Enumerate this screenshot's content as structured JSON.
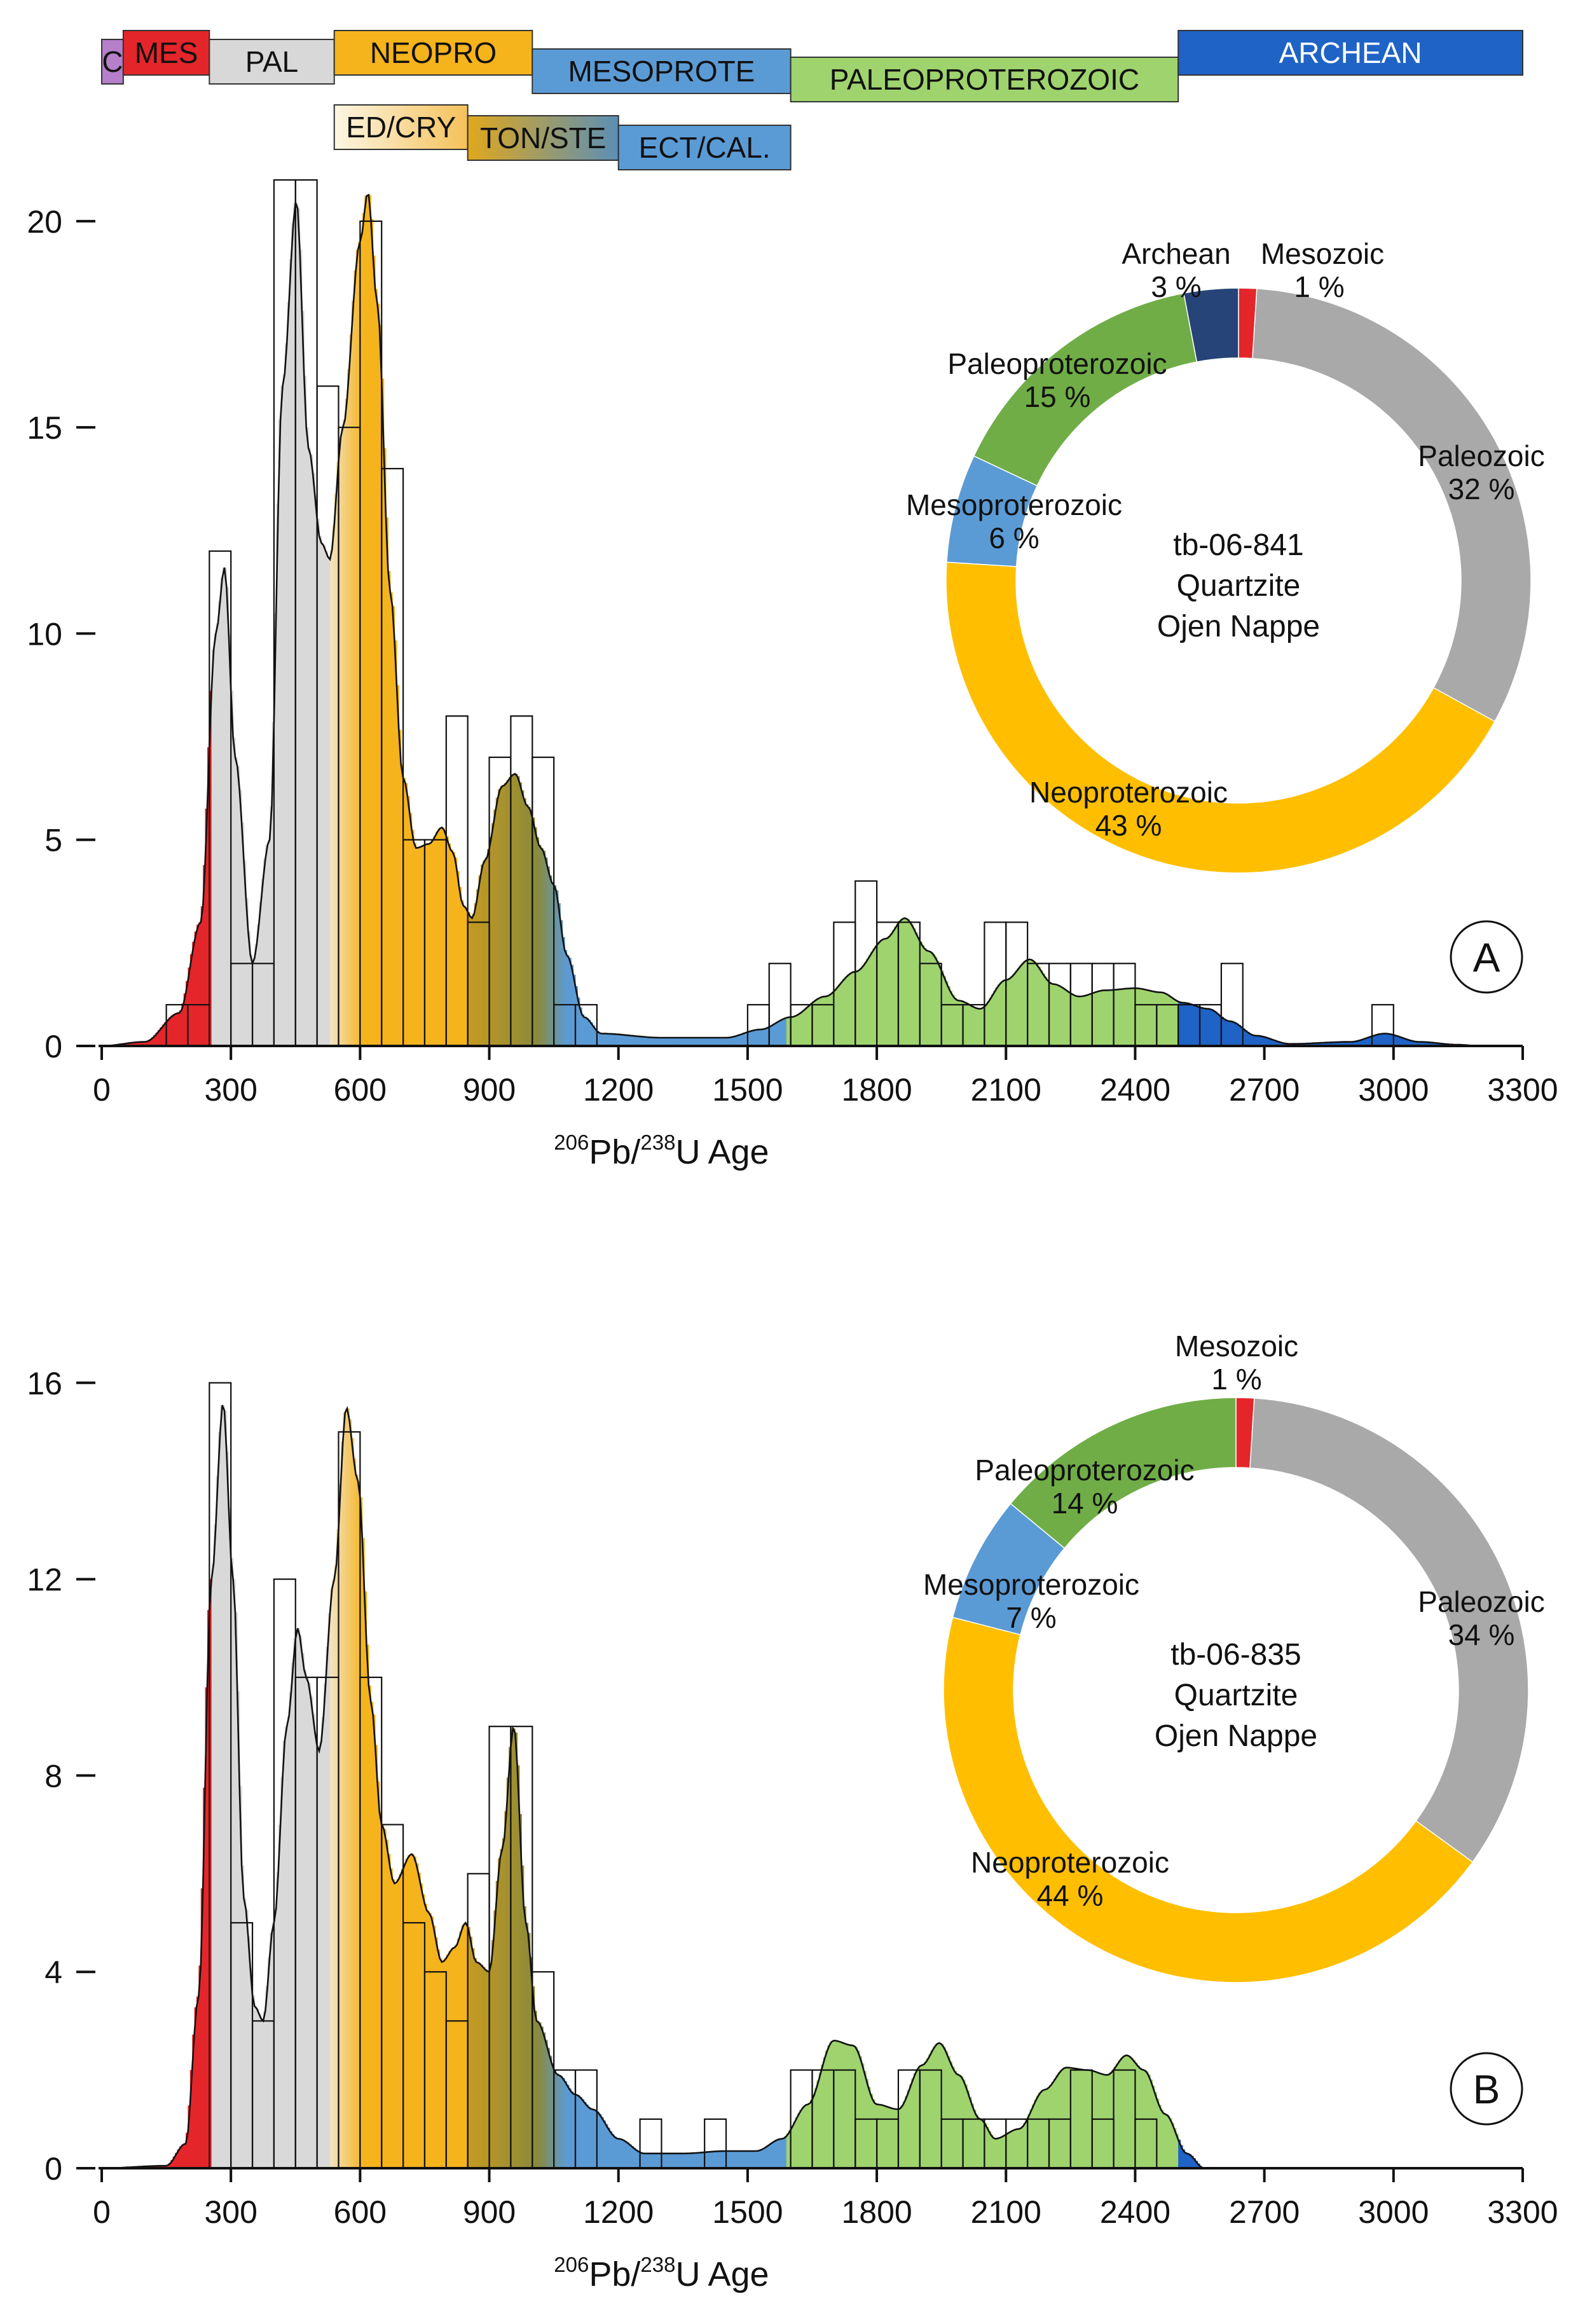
{
  "timescale": {
    "top_row": [
      {
        "label": "C",
        "color": "#b57fc9",
        "from": 0,
        "to": 50
      },
      {
        "label": "MES",
        "color": "#e4262a",
        "from": 50,
        "to": 250
      },
      {
        "label": "PAL",
        "color": "#d8d8d8",
        "from": 250,
        "to": 540
      },
      {
        "label": "NEOPRO",
        "color": "#f5b31c",
        "from": 540,
        "to": 1000
      },
      {
        "label": "MESOPROTE",
        "color": "#5b9bd5",
        "from": 1000,
        "to": 1600
      },
      {
        "label": "PALEOPROTEROZOIC",
        "color": "#9fd36e",
        "from": 1600,
        "to": 2500
      },
      {
        "label": "ARCHEAN",
        "color": "#1f63c6",
        "from": 2500,
        "to": 3300
      }
    ],
    "bottom_row": [
      {
        "label": "ED/CRY",
        "color": "gradient-ed",
        "from": 540,
        "to": 850
      },
      {
        "label": "TON/STE",
        "color": "gradient-ton",
        "from": 850,
        "to": 1200
      },
      {
        "label": "ECT/CAL.",
        "color": "#5b9bd5",
        "from": 1200,
        "to": 1600
      }
    ]
  },
  "chart_data": [
    {
      "type": "bar",
      "panel": "A",
      "xlabel": {
        "sup1": "206",
        "pb": "Pb/",
        "sup2": "238",
        "rest": "U   Age"
      },
      "xlim": [
        0,
        3300
      ],
      "xticks": [
        "0",
        "300",
        "600",
        "900",
        "1200",
        "1500",
        "1800",
        "2100",
        "2400",
        "2700",
        "3000",
        "3300"
      ],
      "ylim": [
        0,
        21
      ],
      "yticks": [
        {
          "v": 0,
          "label": "0"
        },
        {
          "v": 5,
          "label": "5"
        },
        {
          "v": 10,
          "label": "10"
        },
        {
          "v": 15,
          "label": "15"
        },
        {
          "v": 20,
          "label": "20"
        }
      ],
      "bin_width": 50,
      "bins_start": [
        150,
        200,
        250,
        300,
        350,
        400,
        450,
        500,
        550,
        600,
        650,
        700,
        750,
        800,
        850,
        900,
        950,
        1000,
        1050,
        1100,
        1500,
        1550,
        1600,
        1650,
        1700,
        1750,
        1800,
        1850,
        1900,
        1950,
        2000,
        2050,
        2100,
        2150,
        2200,
        2250,
        2300,
        2350,
        2400,
        2450,
        2500,
        2550,
        2600,
        2950
      ],
      "bins_count": [
        1,
        1,
        12,
        2,
        2,
        21,
        21,
        16,
        15,
        20,
        14,
        5,
        5,
        8,
        3,
        7,
        8,
        7,
        1,
        1,
        1,
        2,
        1,
        1,
        3,
        4,
        3,
        3,
        2,
        1,
        1,
        3,
        3,
        2,
        2,
        2,
        2,
        2,
        1,
        1,
        1,
        1,
        2,
        1
      ],
      "kde": [
        [
          0,
          0
        ],
        [
          100,
          0.1
        ],
        [
          180,
          0.8
        ],
        [
          230,
          3
        ],
        [
          265,
          10
        ],
        [
          285,
          11.6
        ],
        [
          310,
          7
        ],
        [
          350,
          2
        ],
        [
          390,
          5
        ],
        [
          420,
          16
        ],
        [
          452,
          20.5
        ],
        [
          480,
          14.5
        ],
        [
          510,
          12.2
        ],
        [
          530,
          11.8
        ],
        [
          560,
          15
        ],
        [
          600,
          19.5
        ],
        [
          618,
          20.7
        ],
        [
          640,
          18
        ],
        [
          670,
          11
        ],
        [
          700,
          6.5
        ],
        [
          730,
          4.8
        ],
        [
          760,
          4.9
        ],
        [
          790,
          5.3
        ],
        [
          815,
          4.7
        ],
        [
          840,
          3.4
        ],
        [
          860,
          3.1
        ],
        [
          890,
          4.5
        ],
        [
          930,
          6.3
        ],
        [
          960,
          6.6
        ],
        [
          990,
          5.8
        ],
        [
          1020,
          4.8
        ],
        [
          1050,
          3.9
        ],
        [
          1080,
          2.2
        ],
        [
          1120,
          0.7
        ],
        [
          1160,
          0.3
        ],
        [
          1300,
          0.2
        ],
        [
          1450,
          0.2
        ],
        [
          1530,
          0.4
        ],
        [
          1600,
          0.7
        ],
        [
          1680,
          1.2
        ],
        [
          1750,
          1.8
        ],
        [
          1820,
          2.6
        ],
        [
          1865,
          3.1
        ],
        [
          1920,
          2.3
        ],
        [
          1990,
          1.1
        ],
        [
          2040,
          0.9
        ],
        [
          2100,
          1.6
        ],
        [
          2155,
          2.1
        ],
        [
          2210,
          1.5
        ],
        [
          2270,
          1.2
        ],
        [
          2330,
          1.35
        ],
        [
          2400,
          1.4
        ],
        [
          2460,
          1.3
        ],
        [
          2510,
          1.05
        ],
        [
          2570,
          0.9
        ],
        [
          2620,
          0.6
        ],
        [
          2680,
          0.25
        ],
        [
          2760,
          0.05
        ],
        [
          2900,
          0.1
        ],
        [
          2980,
          0.3
        ],
        [
          3060,
          0.1
        ],
        [
          3150,
          0.03
        ],
        [
          3200,
          0
        ]
      ],
      "panel_label": "A",
      "donut": {
        "center_lines": [
          "tb-06-841",
          "Quartzite",
          "Ojen Nappe"
        ],
        "slices": [
          {
            "name": "Mesozoic",
            "pct": 1,
            "label": "1 %",
            "color": "#e4262a"
          },
          {
            "name": "Paleozoic",
            "pct": 32,
            "label": "32 %",
            "color": "#a9a9a9"
          },
          {
            "name": "Neoproterozoic",
            "pct": 43,
            "label": "43 %",
            "color": "#ffbf00"
          },
          {
            "name": "Mesoproterozoic",
            "pct": 6,
            "label": "6 %",
            "color": "#5b9bd5"
          },
          {
            "name": "Paleoproterozoic",
            "pct": 15,
            "label": "15 %",
            "color": "#70ad47"
          },
          {
            "name": "Archean",
            "pct": 3,
            "label": "3 %",
            "color": "#264478"
          }
        ]
      }
    },
    {
      "type": "bar",
      "panel": "B",
      "xlabel": {
        "sup1": "206",
        "pb": "Pb/",
        "sup2": "238",
        "rest": "U   Age"
      },
      "xlim": [
        0,
        3300
      ],
      "xticks": [
        "0",
        "300",
        "600",
        "900",
        "1200",
        "1500",
        "1800",
        "2100",
        "2400",
        "2700",
        "3000",
        "3300"
      ],
      "ylim": [
        0,
        16.8
      ],
      "yticks": [
        {
          "v": 0,
          "label": "0"
        },
        {
          "v": 4,
          "label": "4"
        },
        {
          "v": 8,
          "label": "8"
        },
        {
          "v": 12,
          "label": "12"
        },
        {
          "v": 16,
          "label": "16"
        }
      ],
      "bin_width": 50,
      "bins_start": [
        250,
        300,
        350,
        400,
        450,
        500,
        550,
        600,
        650,
        700,
        750,
        800,
        850,
        900,
        950,
        1000,
        1050,
        1100,
        1250,
        1400,
        1600,
        1650,
        1700,
        1750,
        1800,
        1850,
        1900,
        1950,
        2000,
        2050,
        2100,
        2150,
        2200,
        2250,
        2300,
        2350,
        2400
      ],
      "bins_count": [
        16,
        5,
        3,
        12,
        10,
        10,
        15,
        10,
        7,
        5,
        4,
        3,
        6,
        9,
        9,
        4,
        2,
        2,
        1,
        1,
        2,
        2,
        2,
        1,
        1,
        2,
        2,
        1,
        1,
        1,
        1,
        1,
        1,
        2,
        1,
        2,
        1
      ],
      "kde": [
        [
          0,
          0
        ],
        [
          150,
          0.05
        ],
        [
          195,
          0.5
        ],
        [
          225,
          3.5
        ],
        [
          255,
          12
        ],
        [
          282,
          15.6
        ],
        [
          305,
          12
        ],
        [
          330,
          5.5
        ],
        [
          355,
          3.3
        ],
        [
          375,
          3
        ],
        [
          400,
          5
        ],
        [
          430,
          9
        ],
        [
          455,
          11
        ],
        [
          475,
          10
        ],
        [
          505,
          8.5
        ],
        [
          540,
          12
        ],
        [
          568,
          15.5
        ],
        [
          595,
          14
        ],
        [
          625,
          9.5
        ],
        [
          650,
          7
        ],
        [
          680,
          5.8
        ],
        [
          720,
          6.4
        ],
        [
          760,
          5.2
        ],
        [
          790,
          4.2
        ],
        [
          820,
          4.5
        ],
        [
          845,
          5
        ],
        [
          870,
          4.2
        ],
        [
          900,
          4
        ],
        [
          930,
          6.5
        ],
        [
          957,
          9
        ],
        [
          985,
          5
        ],
        [
          1010,
          3
        ],
        [
          1060,
          1.9
        ],
        [
          1100,
          1.5
        ],
        [
          1140,
          1.2
        ],
        [
          1200,
          0.6
        ],
        [
          1260,
          0.3
        ],
        [
          1350,
          0.3
        ],
        [
          1450,
          0.35
        ],
        [
          1520,
          0.35
        ],
        [
          1580,
          0.6
        ],
        [
          1640,
          1.3
        ],
        [
          1700,
          2.6
        ],
        [
          1745,
          2.5
        ],
        [
          1800,
          1.3
        ],
        [
          1850,
          1.2
        ],
        [
          1905,
          2.1
        ],
        [
          1945,
          2.55
        ],
        [
          1990,
          1.9
        ],
        [
          2040,
          1
        ],
        [
          2075,
          0.6
        ],
        [
          2130,
          0.8
        ],
        [
          2190,
          1.6
        ],
        [
          2240,
          2.05
        ],
        [
          2290,
          2
        ],
        [
          2335,
          1.9
        ],
        [
          2380,
          2.3
        ],
        [
          2420,
          2
        ],
        [
          2470,
          1.1
        ],
        [
          2520,
          0.3
        ],
        [
          2560,
          0
        ]
      ],
      "panel_label": "B",
      "donut": {
        "center_lines": [
          "tb-06-835",
          "Quartzite",
          "Ojen Nappe"
        ],
        "slices": [
          {
            "name": "Mesozoic",
            "pct": 1,
            "label": "1 %",
            "color": "#e4262a"
          },
          {
            "name": "Paleozoic",
            "pct": 34,
            "label": "34 %",
            "color": "#a9a9a9"
          },
          {
            "name": "Neoproterozoic",
            "pct": 44,
            "label": "44 %",
            "color": "#ffbf00"
          },
          {
            "name": "Mesoproterozoic",
            "pct": 7,
            "label": "7 %",
            "color": "#5b9bd5"
          },
          {
            "name": "Paleoproterozoic",
            "pct": 14,
            "label": "14 %",
            "color": "#70ad47"
          }
        ]
      }
    }
  ]
}
